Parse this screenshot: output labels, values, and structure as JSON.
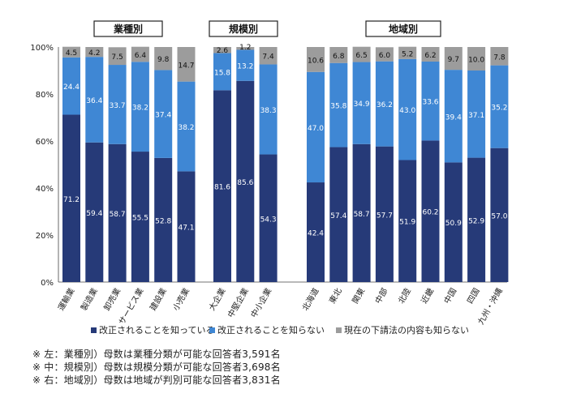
{
  "chart_data": {
    "type": "bar",
    "stacked": true,
    "ylim": [
      0,
      100
    ],
    "y_ticks": [
      "0%",
      "20%",
      "40%",
      "60%",
      "80%",
      "100%"
    ],
    "y_tick_values": [
      0,
      20,
      40,
      60,
      80,
      100
    ],
    "colors": {
      "know": "#263a78",
      "not_know_revision": "#3f87d4",
      "not_know_law": "#9c9c9c"
    },
    "series": [
      {
        "key": "know",
        "name": "改正されることを知っている"
      },
      {
        "key": "not_know_revision",
        "name": "改正されることを知らない"
      },
      {
        "key": "not_know_law",
        "name": "現在の下請法の内容も知らない"
      }
    ],
    "groups": [
      {
        "title": "業種別",
        "categories": [
          "運輸業",
          "製造業",
          "卸売業",
          "サービス業",
          "建設業",
          "小売業"
        ],
        "values": {
          "know": [
            71.2,
            59.4,
            58.7,
            55.5,
            52.8,
            47.1
          ],
          "not_know_revision": [
            24.4,
            36.4,
            33.7,
            38.2,
            37.4,
            38.2
          ],
          "not_know_law": [
            4.5,
            4.2,
            7.5,
            6.4,
            9.8,
            14.7
          ]
        }
      },
      {
        "title": "規模別",
        "categories": [
          "大企業",
          "中堅企業",
          "中小企業"
        ],
        "values": {
          "know": [
            81.6,
            85.6,
            54.3
          ],
          "not_know_revision": [
            15.8,
            13.2,
            38.3
          ],
          "not_know_law": [
            2.6,
            1.2,
            7.4
          ]
        }
      },
      {
        "title": "地域別",
        "categories": [
          "北海道",
          "東北",
          "関東",
          "中部",
          "北陸",
          "近畿",
          "中国",
          "四国",
          "九州・沖縄"
        ],
        "values": {
          "know": [
            42.4,
            57.4,
            58.7,
            57.7,
            51.9,
            60.2,
            50.9,
            52.9,
            57.0
          ],
          "not_know_revision": [
            47.0,
            35.8,
            34.9,
            36.2,
            43.0,
            33.6,
            39.4,
            37.1,
            35.2
          ],
          "not_know_law": [
            10.6,
            6.8,
            6.5,
            6.0,
            5.2,
            6.2,
            9.7,
            10.0,
            7.8
          ]
        }
      }
    ]
  },
  "notes": [
    "※ 左：業種別）母数は業種分類が可能な回答者3,591名",
    "※ 中：規模別）母数は規模分類が可能な回答者3,698名",
    "※ 右：地域別）母数は地域が判別可能な回答者3,831名"
  ]
}
